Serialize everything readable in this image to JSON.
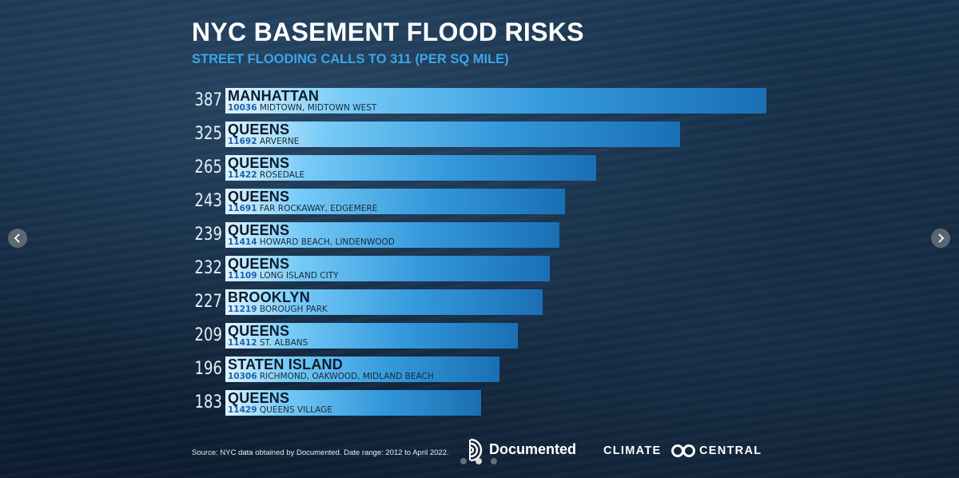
{
  "chart_data": {
    "type": "bar",
    "orientation": "horizontal",
    "title": "NYC BASEMENT FLOOD RISKS",
    "subtitle": "STREET FLOODING CALLS TO 311 (PER SQ MILE)",
    "xlim": [
      0,
      400
    ],
    "grid": false,
    "legend": "none",
    "rows": [
      {
        "value": 387,
        "borough": "MANHATTAN",
        "zip": "10036",
        "neighborhood": "MIDTOWN, MIDTOWN WEST"
      },
      {
        "value": 325,
        "borough": "QUEENS",
        "zip": "11692",
        "neighborhood": "ARVERNE"
      },
      {
        "value": 265,
        "borough": "QUEENS",
        "zip": "11422",
        "neighborhood": "ROSEDALE"
      },
      {
        "value": 243,
        "borough": "QUEENS",
        "zip": "11691",
        "neighborhood": "FAR ROCKAWAY, EDGEMERE"
      },
      {
        "value": 239,
        "borough": "QUEENS",
        "zip": "11414",
        "neighborhood": "HOWARD BEACH, LINDENWOOD"
      },
      {
        "value": 232,
        "borough": "QUEENS",
        "zip": "11109",
        "neighborhood": "LONG ISLAND CITY"
      },
      {
        "value": 227,
        "borough": "BROOKLYN",
        "zip": "11219",
        "neighborhood": "BOROUGH PARK"
      },
      {
        "value": 209,
        "borough": "QUEENS",
        "zip": "11412",
        "neighborhood": "ST. ALBANS"
      },
      {
        "value": 196,
        "borough": "STATEN ISLAND",
        "zip": "10306",
        "neighborhood": "RICHMOND, OAKWOOD, MIDLAND BEACH"
      },
      {
        "value": 183,
        "borough": "QUEENS",
        "zip": "11429",
        "neighborhood": "QUEENS VILLAGE"
      }
    ]
  },
  "footer": {
    "source": "Source: NYC data obtained by Documented. Date range: 2012 to April 2022.",
    "brand_documented": "Documented",
    "brand_climate": "CLIMATE",
    "brand_central": "CENTRAL"
  },
  "carousel": {
    "prev_icon": "chevron-left-icon",
    "next_icon": "chevron-right-icon",
    "slide_count": 3,
    "active_slide": 2
  }
}
